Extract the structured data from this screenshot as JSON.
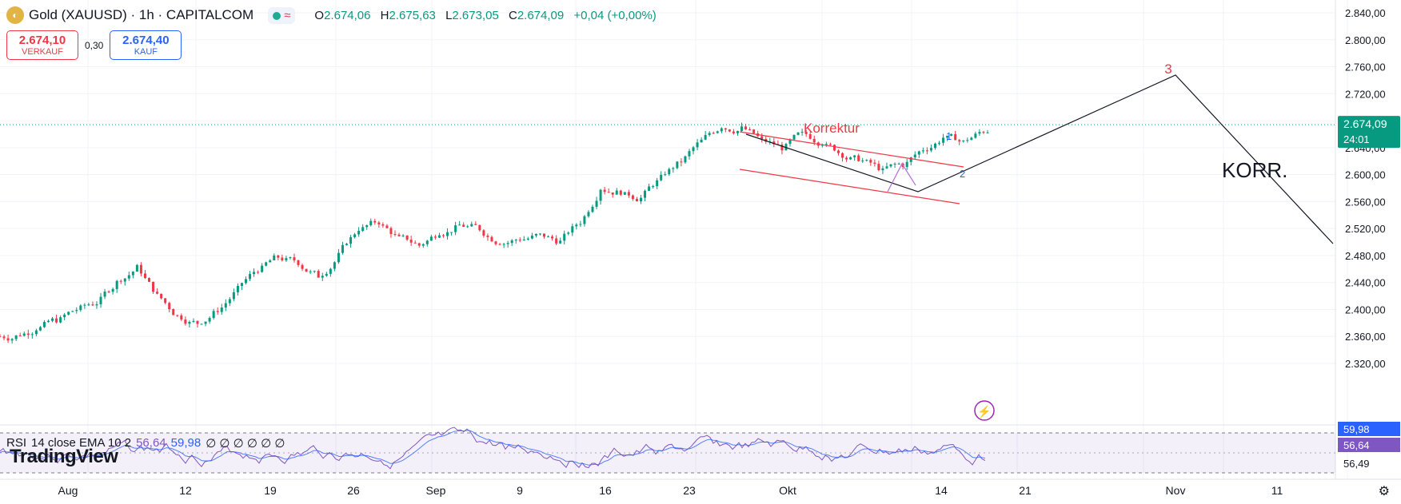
{
  "header": {
    "symbol": "Gold (XAUUSD) · 1h · CAPITALCOM",
    "ohlc": {
      "open_label": "O",
      "open": "2.674,06",
      "high_label": "H",
      "high": "2.675,63",
      "low_label": "L",
      "low": "2.673,05",
      "close_label": "C",
      "close": "2.674,09",
      "change": "+0,04 (+0,00%)"
    },
    "status_symbol": "≈"
  },
  "trade": {
    "sell_price": "2.674,10",
    "sell_label": "VERKAUF",
    "spread": "0,30",
    "buy_price": "2.674,40",
    "buy_label": "KAUF"
  },
  "price_axis": {
    "labels": [
      "2.840,00",
      "2.800,00",
      "2.760,00",
      "2.720,00",
      "2.680,00",
      "2.640,00",
      "2.600,00",
      "2.560,00",
      "2.520,00",
      "2.480,00",
      "2.440,00",
      "2.400,00",
      "2.360,00",
      "2.320,00"
    ],
    "current_price": "2.674,09",
    "countdown": "24:01"
  },
  "rsi": {
    "label": "RSI",
    "params": "14 close EMA 10 2",
    "value": "56,64",
    "ema_value": "59,98",
    "empty": "∅ ∅ ∅ ∅ ∅ ∅",
    "axis_low": "56,49"
  },
  "time_axis": [
    "Aug",
    "12",
    "19",
    "26",
    "Sep",
    "9",
    "16",
    "23",
    "Okt",
    "14",
    "21",
    "Nov",
    "11"
  ],
  "annotations": {
    "korrektur": "Korrektur",
    "wave1": "1",
    "wave2": "2",
    "wave3": "3",
    "korr": "KORR."
  },
  "branding": "TradingView",
  "colors": {
    "up": "#089981",
    "down": "#f23645",
    "line": "#131722",
    "channel": "#f23645",
    "rsi": "#7e57c2",
    "ema": "#2962ff",
    "wave_blue": "#2962ff"
  },
  "chart_data": {
    "type": "line",
    "series": [
      {
        "values": [
          2360,
          2372,
          2385,
          2400,
          2410,
          2440,
          2462,
          2420,
          2390,
          2380,
          2400,
          2430,
          2460,
          2478,
          2470,
          2450,
          2480,
          2520,
          2530,
          2505,
          2495,
          2515,
          2525,
          2520,
          2500,
          2505,
          2510,
          2500,
          2530,
          2580,
          2575,
          2565,
          2595,
          2620,
          2650,
          2672,
          2668,
          2650,
          2640,
          2660,
          2648,
          2630,
          2620,
          2605,
          2615,
          2638,
          2655,
          2648,
          2665,
          2675
        ]
      }
    ],
    "ylim": [
      2300,
      2850
    ]
  }
}
